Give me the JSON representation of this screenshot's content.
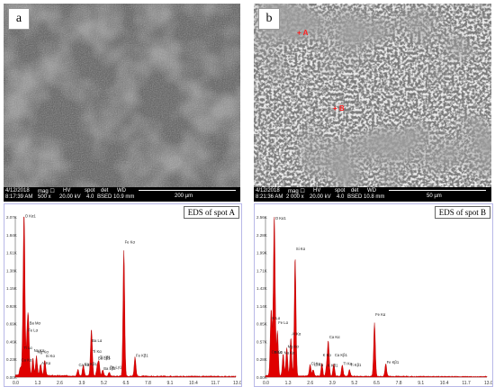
{
  "panel_a": {
    "letter": "a",
    "infobar": {
      "date": "4/12/2018",
      "time": "8:17:39 AM",
      "mag_label": "mag ☐",
      "mag": "500 x",
      "hv_label": "HV",
      "hv": "20.00 kV",
      "spot_label": "spot",
      "spot": "4.0",
      "det_label": "det",
      "det": "BSED",
      "wd_label": "WD",
      "wd": "10.9 mm",
      "scale": "200 µm"
    },
    "eds_title": "EDS of spot A"
  },
  "panel_b": {
    "letter": "b",
    "infobar": {
      "date": "4/12/2018",
      "time": "8:21:36 AM",
      "mag_label": "mag ☐",
      "mag": "2 000 x",
      "hv_label": "HV",
      "hv": "20.00 kV",
      "spot_label": "spot",
      "spot": "4.0",
      "det_label": "det",
      "det": "BSED",
      "wd_label": "WD",
      "wd": "10.8 mm",
      "scale": "50 µm"
    },
    "marker_a": "+ A",
    "marker_b": "+ B",
    "eds_title": "EDS of spot B"
  },
  "chart_data": [
    {
      "type": "area",
      "title": "EDS of spot A",
      "x_ticks": [
        "0.0",
        "1.3",
        "2.6",
        "3.9",
        "5.2",
        "6.5",
        "7.8",
        "9.1",
        "10.4",
        "11.7",
        "13.0"
      ],
      "y_ticks": [
        "2.07K",
        "1.84K",
        "1.61K",
        "1.38K",
        "1.15K",
        "0.92K",
        "0.69K",
        "0.46K",
        "0.23K",
        "0.00K"
      ],
      "xlim": [
        0,
        13.0
      ],
      "ylim": [
        0,
        2.07
      ],
      "peaks": [
        {
          "label": "O Kα1",
          "x": 0.52,
          "y": 2.05
        },
        {
          "label": "Ba Mα",
          "x": 0.78,
          "y": 0.62
        },
        {
          "label": "Fe Lα",
          "x": 0.7,
          "y": 0.48
        },
        {
          "label": "Ti Lα",
          "x": 0.45,
          "y": 0.35
        },
        {
          "label": "Mg Kα",
          "x": 1.25,
          "y": 0.25
        },
        {
          "label": "Na Kα",
          "x": 1.04,
          "y": 0.22
        },
        {
          "label": "Al Kα",
          "x": 1.49,
          "y": 0.15
        },
        {
          "label": "Si Kα",
          "x": 1.74,
          "y": 0.2
        },
        {
          "label": "Ca Kα",
          "x": 0.3,
          "y": 0.1
        },
        {
          "label": "Ca Kβ1",
          "x": 4.01,
          "y": 0.14
        },
        {
          "label": "Ca Kα",
          "x": 3.69,
          "y": 0.08
        },
        {
          "label": "Ba Lα",
          "x": 4.47,
          "y": 0.35
        },
        {
          "label": "Ti Kα",
          "x": 4.51,
          "y": 0.3
        },
        {
          "label": "Ti Kβ1",
          "x": 4.93,
          "y": 0.18
        },
        {
          "label": "Ba Lβ1",
          "x": 4.83,
          "y": 0.12
        },
        {
          "label": "Ba Lβ2",
          "x": 5.16,
          "y": 0.08
        },
        {
          "label": "Ba Lγ1",
          "x": 5.53,
          "y": 0.05
        },
        {
          "label": "Fe Kα",
          "x": 6.4,
          "y": 1.62
        },
        {
          "label": "Fe Kβ1",
          "x": 7.06,
          "y": 0.25
        }
      ],
      "series_color": "#e00000"
    },
    {
      "type": "area",
      "title": "EDS of spot B",
      "x_ticks": [
        "0.0",
        "1.3",
        "2.6",
        "3.9",
        "5.2",
        "6.5",
        "7.8",
        "9.1",
        "10.4",
        "11.7",
        "13.0"
      ],
      "y_ticks": [
        "2.56K",
        "2.28K",
        "1.99K",
        "1.71K",
        "1.42K",
        "1.14K",
        "0.85K",
        "0.57K",
        "0.28K",
        "0.00K"
      ],
      "xlim": [
        0,
        13.0
      ],
      "ylim": [
        0,
        2.56
      ],
      "peaks": [
        {
          "label": "O Kα1",
          "x": 0.52,
          "y": 2.5
        },
        {
          "label": "K Lα",
          "x": 0.34,
          "y": 0.85
        },
        {
          "label": "Fe Lα",
          "x": 0.7,
          "y": 0.72
        },
        {
          "label": "Mg Kα",
          "x": 1.25,
          "y": 0.45
        },
        {
          "label": "Al Kα",
          "x": 1.49,
          "y": 0.6
        },
        {
          "label": "Si Kα",
          "x": 1.74,
          "y": 1.9
        },
        {
          "label": "Na Kα",
          "x": 1.04,
          "y": 0.35
        },
        {
          "label": "Ti Lα",
          "x": 0.45,
          "y": 0.3
        },
        {
          "label": "Ca Kα",
          "x": 0.3,
          "y": 0.25
        },
        {
          "label": "Cl Kα",
          "x": 2.62,
          "y": 0.18
        },
        {
          "label": "Cl Kα",
          "x": 2.8,
          "y": 0.1
        },
        {
          "label": "K Kα",
          "x": 3.31,
          "y": 0.2
        },
        {
          "label": "K Kβ1",
          "x": 3.59,
          "y": 0.15
        },
        {
          "label": "Ca Kα",
          "x": 3.69,
          "y": 0.55
        },
        {
          "label": "Ca Kβ1",
          "x": 4.01,
          "y": 0.2
        },
        {
          "label": "Ti Kα",
          "x": 4.51,
          "y": 0.18
        },
        {
          "label": "Ti Kβ1",
          "x": 4.93,
          "y": 0.1
        },
        {
          "label": "Fe Kα",
          "x": 6.4,
          "y": 0.85
        },
        {
          "label": "Fe Kβ1",
          "x": 7.06,
          "y": 0.2
        }
      ],
      "series_color": "#e00000"
    }
  ]
}
